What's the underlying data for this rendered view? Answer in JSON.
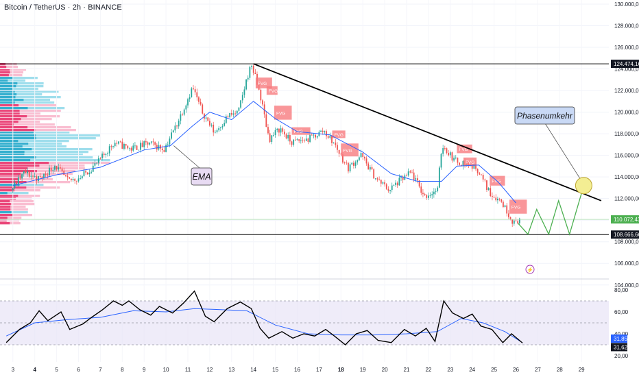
{
  "header": {
    "symbol_title": "Bitcoin / TetherUS · 2h · BINANCE"
  },
  "colors": {
    "bull": "#26a69a",
    "bear": "#ef5350",
    "ema": "#2962ff",
    "trendline": "#000000",
    "projection": "#4caf50",
    "fvg": "#f77c80",
    "rsi_line": "#000000",
    "rsi_ma": "#2962ff",
    "rsi_band": "#e8e4f7",
    "label_blue": "#c9d9f5",
    "label_purple": "#e8dbf3"
  },
  "price_axis": {
    "ticks": [
      "130.000,00",
      "128.000,00",
      "126.000,00",
      "124.000,00",
      "122.000,00",
      "120.000,00",
      "118.000,00",
      "116.000,00",
      "114.000,00",
      "112.000,00",
      "110.000,00",
      "108.000,00",
      "106.000,00",
      "104.000,00"
    ],
    "markers": [
      {
        "label": "124.474,16",
        "value": 124474.16,
        "style": "dark"
      },
      {
        "label": "110.072,43",
        "value": 110072.43,
        "style": "green"
      },
      {
        "label": "108.666,66",
        "value": 108666.66,
        "style": "dark"
      }
    ]
  },
  "rsi_axis": {
    "ticks": [
      "80,00",
      "60,00",
      "40,00",
      "20,00"
    ],
    "markers": [
      {
        "label": "31,85",
        "value": 31.85,
        "style": "blue"
      },
      {
        "label": "31,62",
        "value": 31.62,
        "style": "dark"
      }
    ]
  },
  "time_axis": {
    "ticks": [
      "3",
      "4",
      "5",
      "6",
      "7",
      "8",
      "9",
      "10",
      "11",
      "12",
      "13",
      "14",
      "15",
      "16",
      "17",
      "18",
      "19",
      "20",
      "21",
      "22",
      "23",
      "24",
      "25",
      "26",
      "27",
      "28",
      "29"
    ]
  },
  "annotations": {
    "ema_label": "EMA",
    "phase_label": "Phasenumkehr",
    "fvg_label": "FVG",
    "lightning": "⚡"
  },
  "chart_data": {
    "type": "candlestick",
    "title": "Bitcoin / TetherUS · 2h · BINANCE",
    "x_axis": "day of month",
    "price_range": [
      103000,
      130500
    ],
    "rsi_range": [
      17,
      87
    ],
    "key_levels": [
      124474.16,
      110072.43,
      108666.66
    ],
    "trendline": [
      {
        "day": 14,
        "price": 124474.16
      },
      {
        "day": 29.9,
        "price": 111800
      }
    ],
    "price_path": [
      {
        "day": 3,
        "price": 112800
      },
      {
        "day": 3.6,
        "price": 114400
      },
      {
        "day": 4.3,
        "price": 113800
      },
      {
        "day": 5,
        "price": 115100
      },
      {
        "day": 5.6,
        "price": 113600
      },
      {
        "day": 6.2,
        "price": 114000
      },
      {
        "day": 7,
        "price": 115400
      },
      {
        "day": 7.7,
        "price": 117200
      },
      {
        "day": 8.5,
        "price": 116600
      },
      {
        "day": 9.3,
        "price": 117100
      },
      {
        "day": 10,
        "price": 116600
      },
      {
        "day": 10.6,
        "price": 119000
      },
      {
        "day": 11.3,
        "price": 122300
      },
      {
        "day": 11.7,
        "price": 120200
      },
      {
        "day": 12.3,
        "price": 118100
      },
      {
        "day": 12.9,
        "price": 119600
      },
      {
        "day": 13.4,
        "price": 120000
      },
      {
        "day": 13.8,
        "price": 123300
      },
      {
        "day": 14,
        "price": 124400
      },
      {
        "day": 14.4,
        "price": 121500
      },
      {
        "day": 14.8,
        "price": 117500
      },
      {
        "day": 15.3,
        "price": 118500
      },
      {
        "day": 15.8,
        "price": 117200
      },
      {
        "day": 16.6,
        "price": 117500
      },
      {
        "day": 17.3,
        "price": 118300
      },
      {
        "day": 17.8,
        "price": 117000
      },
      {
        "day": 18.4,
        "price": 114800
      },
      {
        "day": 19,
        "price": 116000
      },
      {
        "day": 19.7,
        "price": 113800
      },
      {
        "day": 20.3,
        "price": 112800
      },
      {
        "day": 20.8,
        "price": 113700
      },
      {
        "day": 21.3,
        "price": 114400
      },
      {
        "day": 21.9,
        "price": 112200
      },
      {
        "day": 22.5,
        "price": 112800
      },
      {
        "day": 22.7,
        "price": 117000
      },
      {
        "day": 23.3,
        "price": 115500
      },
      {
        "day": 23.8,
        "price": 115200
      },
      {
        "day": 24.3,
        "price": 114800
      },
      {
        "day": 24.9,
        "price": 112500
      },
      {
        "day": 25.4,
        "price": 111800
      },
      {
        "day": 26,
        "price": 109700
      },
      {
        "day": 26.2,
        "price": 110100
      }
    ],
    "ema_path": [
      {
        "day": 3,
        "price": 113200
      },
      {
        "day": 5,
        "price": 114200
      },
      {
        "day": 7,
        "price": 114900
      },
      {
        "day": 9,
        "price": 116500
      },
      {
        "day": 10.2,
        "price": 116900
      },
      {
        "day": 11.2,
        "price": 118700
      },
      {
        "day": 12,
        "price": 120000
      },
      {
        "day": 13,
        "price": 119300
      },
      {
        "day": 14,
        "price": 121000
      },
      {
        "day": 15,
        "price": 119400
      },
      {
        "day": 16,
        "price": 118200
      },
      {
        "day": 17.5,
        "price": 117900
      },
      {
        "day": 19,
        "price": 116300
      },
      {
        "day": 20.3,
        "price": 114300
      },
      {
        "day": 21.5,
        "price": 113600
      },
      {
        "day": 22.6,
        "price": 113600
      },
      {
        "day": 23.3,
        "price": 115000
      },
      {
        "day": 24.3,
        "price": 115100
      },
      {
        "day": 25.2,
        "price": 113500
      },
      {
        "day": 26,
        "price": 111600
      }
    ],
    "projection_path": [
      {
        "day": 26.1,
        "price": 109700
      },
      {
        "day": 26.55,
        "price": 108700
      },
      {
        "day": 26.95,
        "price": 111000
      },
      {
        "day": 27.5,
        "price": 108700
      },
      {
        "day": 27.95,
        "price": 111800
      },
      {
        "day": 28.45,
        "price": 108700
      },
      {
        "day": 29.1,
        "price": 113200
      }
    ],
    "phase_reversal_point": {
      "day": 29.1,
      "price": 113200
    },
    "rsi_band": [
      30,
      70
    ],
    "rsi_path": [
      {
        "day": 2.7,
        "price": 32
      },
      {
        "day": 3.3,
        "price": 44
      },
      {
        "day": 3.8,
        "price": 50
      },
      {
        "day": 4.2,
        "price": 61
      },
      {
        "day": 4.6,
        "price": 52
      },
      {
        "day": 5.2,
        "price": 60
      },
      {
        "day": 5.6,
        "price": 44
      },
      {
        "day": 6.2,
        "price": 49
      },
      {
        "day": 6.6,
        "price": 55
      },
      {
        "day": 7.1,
        "price": 62
      },
      {
        "day": 7.6,
        "price": 70
      },
      {
        "day": 8,
        "price": 66
      },
      {
        "day": 8.3,
        "price": 70
      },
      {
        "day": 8.8,
        "price": 62
      },
      {
        "day": 9.3,
        "price": 57
      },
      {
        "day": 9.7,
        "price": 65
      },
      {
        "day": 10.3,
        "price": 59
      },
      {
        "day": 10.8,
        "price": 68
      },
      {
        "day": 11.3,
        "price": 79
      },
      {
        "day": 11.8,
        "price": 56
      },
      {
        "day": 12.2,
        "price": 51
      },
      {
        "day": 12.8,
        "price": 63
      },
      {
        "day": 13.4,
        "price": 69
      },
      {
        "day": 13.9,
        "price": 63
      },
      {
        "day": 14.3,
        "price": 45
      },
      {
        "day": 14.7,
        "price": 36
      },
      {
        "day": 15.3,
        "price": 42
      },
      {
        "day": 15.8,
        "price": 36
      },
      {
        "day": 16.3,
        "price": 40
      },
      {
        "day": 16.8,
        "price": 38
      },
      {
        "day": 17.3,
        "price": 44
      },
      {
        "day": 17.7,
        "price": 38
      },
      {
        "day": 18.2,
        "price": 30
      },
      {
        "day": 18.7,
        "price": 40
      },
      {
        "day": 19.2,
        "price": 43
      },
      {
        "day": 19.7,
        "price": 34
      },
      {
        "day": 20.3,
        "price": 32
      },
      {
        "day": 20.9,
        "price": 44
      },
      {
        "day": 21.4,
        "price": 38
      },
      {
        "day": 21.9,
        "price": 45
      },
      {
        "day": 22.3,
        "price": 33
      },
      {
        "day": 22.7,
        "price": 70
      },
      {
        "day": 23.1,
        "price": 59
      },
      {
        "day": 23.6,
        "price": 54
      },
      {
        "day": 24,
        "price": 58
      },
      {
        "day": 24.4,
        "price": 47
      },
      {
        "day": 24.9,
        "price": 44
      },
      {
        "day": 25.4,
        "price": 32
      },
      {
        "day": 25.8,
        "price": 40
      },
      {
        "day": 26.3,
        "price": 31.6
      }
    ],
    "rsi_ma_path": [
      {
        "day": 2.7,
        "price": 38
      },
      {
        "day": 4,
        "price": 50
      },
      {
        "day": 5.5,
        "price": 53
      },
      {
        "day": 7,
        "price": 55
      },
      {
        "day": 8.5,
        "price": 61
      },
      {
        "day": 10,
        "price": 60
      },
      {
        "day": 11.3,
        "price": 63
      },
      {
        "day": 12.5,
        "price": 62
      },
      {
        "day": 13.7,
        "price": 61
      },
      {
        "day": 15,
        "price": 48
      },
      {
        "day": 16.5,
        "price": 40
      },
      {
        "day": 18,
        "price": 39
      },
      {
        "day": 19.5,
        "price": 39
      },
      {
        "day": 21,
        "price": 40
      },
      {
        "day": 22.4,
        "price": 42
      },
      {
        "day": 23.5,
        "price": 54
      },
      {
        "day": 24.5,
        "price": 50
      },
      {
        "day": 25.5,
        "price": 42
      },
      {
        "day": 26.3,
        "price": 31.9
      }
    ]
  }
}
